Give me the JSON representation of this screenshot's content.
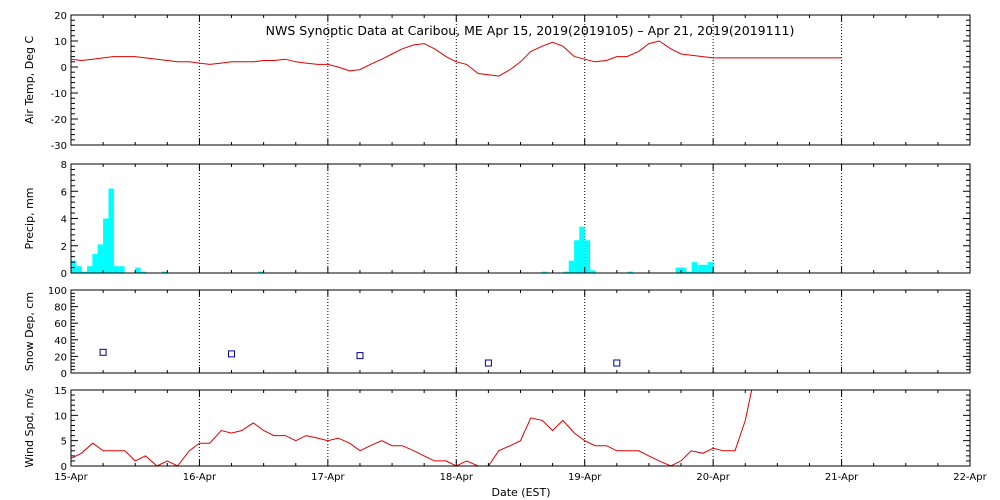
{
  "title": "NWS Synoptic Data at Caribou, ME   Apr 15, 2019(2019105) – Apr 21, 2019(2019111)",
  "xlabel": "Date (EST)",
  "x_tick_labels": [
    "15-Apr",
    "16-Apr",
    "17-Apr",
    "18-Apr",
    "19-Apr",
    "20-Apr",
    "21-Apr",
    "22-Apr"
  ],
  "x_range_days": [
    0,
    7
  ],
  "colors": {
    "temp": "#dd0000",
    "precip": "#00ffff",
    "snow": "#000099",
    "wind": "#dd0000",
    "grid": "#000000",
    "frame": "#000000"
  },
  "chart_data": [
    {
      "type": "line",
      "ylabel": "Air Temp, Deg C",
      "ylim": [
        -30,
        20
      ],
      "yticks": [
        -30,
        -20,
        -10,
        0,
        10,
        20
      ],
      "x_unit": "days since 15-Apr 00:00",
      "x": [
        0,
        0.08,
        0.17,
        0.25,
        0.33,
        0.42,
        0.5,
        0.58,
        0.67,
        0.75,
        0.83,
        0.92,
        1.0,
        1.08,
        1.17,
        1.25,
        1.33,
        1.42,
        1.5,
        1.58,
        1.67,
        1.75,
        1.83,
        1.92,
        2.0,
        2.08,
        2.17,
        2.25,
        2.33,
        2.42,
        2.5,
        2.58,
        2.67,
        2.75,
        2.83,
        2.92,
        3.0,
        3.08,
        3.17,
        3.25,
        3.33,
        3.42,
        3.5,
        3.58,
        3.67,
        3.75,
        3.83,
        3.92,
        4.0,
        4.08,
        4.17,
        4.25,
        4.33,
        4.42,
        4.5,
        4.58,
        4.67,
        4.75,
        4.83,
        4.92,
        5.0,
        5.5,
        6.0
      ],
      "y": [
        3,
        2.5,
        3,
        3.5,
        4,
        4,
        4,
        3.5,
        3,
        2.5,
        2,
        2,
        1.5,
        1,
        1.5,
        2,
        2,
        2,
        2.5,
        2.5,
        3,
        2,
        1.5,
        1,
        1,
        0,
        -1.5,
        -1,
        1,
        3,
        5,
        7,
        8.5,
        9,
        7,
        4,
        2,
        1,
        -2.5,
        -3,
        -3.5,
        -1,
        2,
        6,
        8,
        9.5,
        8,
        4,
        3,
        2,
        2.5,
        4,
        4,
        6,
        9,
        10,
        7,
        5,
        4.5,
        4,
        3.5,
        3.5,
        3.5
      ]
    },
    {
      "type": "bar",
      "ylabel": "Precip, mm",
      "ylim": [
        0,
        8
      ],
      "yticks": [
        0,
        2,
        4,
        6,
        8
      ],
      "x_unit": "days since 15-Apr 00:00",
      "bar_width_days": 0.042,
      "x": [
        0,
        0.042,
        0.083,
        0.125,
        0.167,
        0.208,
        0.25,
        0.292,
        0.333,
        0.375,
        0.5,
        0.542,
        0.708,
        1.458,
        3.667,
        3.833,
        3.875,
        3.917,
        3.958,
        4.0,
        4.042,
        4.333,
        4.708,
        4.75,
        4.792,
        4.833,
        4.875,
        4.917,
        4.958
      ],
      "values": [
        0.9,
        0.5,
        0.1,
        0.5,
        1.4,
        2.1,
        4.0,
        6.2,
        0.5,
        0.5,
        0.4,
        0.1,
        0.1,
        0.1,
        0.1,
        0.1,
        0.9,
        2.4,
        3.4,
        2.4,
        0.2,
        0.1,
        0.4,
        0.4,
        0.1,
        0.8,
        0.6,
        0.6,
        0.8
      ]
    },
    {
      "type": "scatter",
      "ylabel": "Snow Dep, cm",
      "ylim": [
        0,
        100
      ],
      "yticks": [
        0,
        20,
        40,
        60,
        80,
        100
      ],
      "x_unit": "days since 15-Apr 00:00",
      "x": [
        0.25,
        1.25,
        2.25,
        3.25,
        4.25
      ],
      "y": [
        25,
        23,
        21,
        12,
        12
      ]
    },
    {
      "type": "line",
      "ylabel": "Wind Spd, m/s",
      "ylim": [
        0,
        15
      ],
      "yticks": [
        0,
        5,
        10,
        15
      ],
      "x_unit": "days since 15-Apr 00:00",
      "x": [
        0,
        0.08,
        0.17,
        0.25,
        0.33,
        0.42,
        0.5,
        0.58,
        0.67,
        0.75,
        0.83,
        0.92,
        1.0,
        1.08,
        1.17,
        1.25,
        1.33,
        1.42,
        1.5,
        1.58,
        1.67,
        1.75,
        1.83,
        1.92,
        2.0,
        2.08,
        2.17,
        2.25,
        2.33,
        2.42,
        2.5,
        2.58,
        2.67,
        2.75,
        2.83,
        2.92,
        3.0,
        3.08,
        3.17,
        3.25,
        3.33,
        3.42,
        3.5,
        3.58,
        3.67,
        3.75,
        3.83,
        3.92,
        4.0,
        4.08,
        4.17,
        4.25,
        4.33,
        4.42,
        4.5,
        4.58,
        4.67,
        4.75,
        4.83,
        4.92,
        5.0,
        5.08,
        5.17,
        5.25,
        5.3
      ],
      "y": [
        1.5,
        2.5,
        4.5,
        3,
        3,
        3,
        1,
        2,
        0,
        1,
        0,
        3,
        4.5,
        4.5,
        7,
        6.5,
        7,
        8.5,
        7,
        6,
        6,
        5,
        6,
        5.5,
        5,
        5.5,
        4.5,
        3,
        4,
        5,
        4,
        4,
        3,
        2,
        1,
        1,
        0,
        1,
        0,
        0,
        3,
        4,
        5,
        9.5,
        9,
        7,
        9,
        6.5,
        5,
        4,
        4,
        3,
        3,
        3,
        2,
        1,
        0,
        1,
        3,
        2.5,
        3.5,
        3,
        3,
        9,
        15
      ]
    }
  ]
}
